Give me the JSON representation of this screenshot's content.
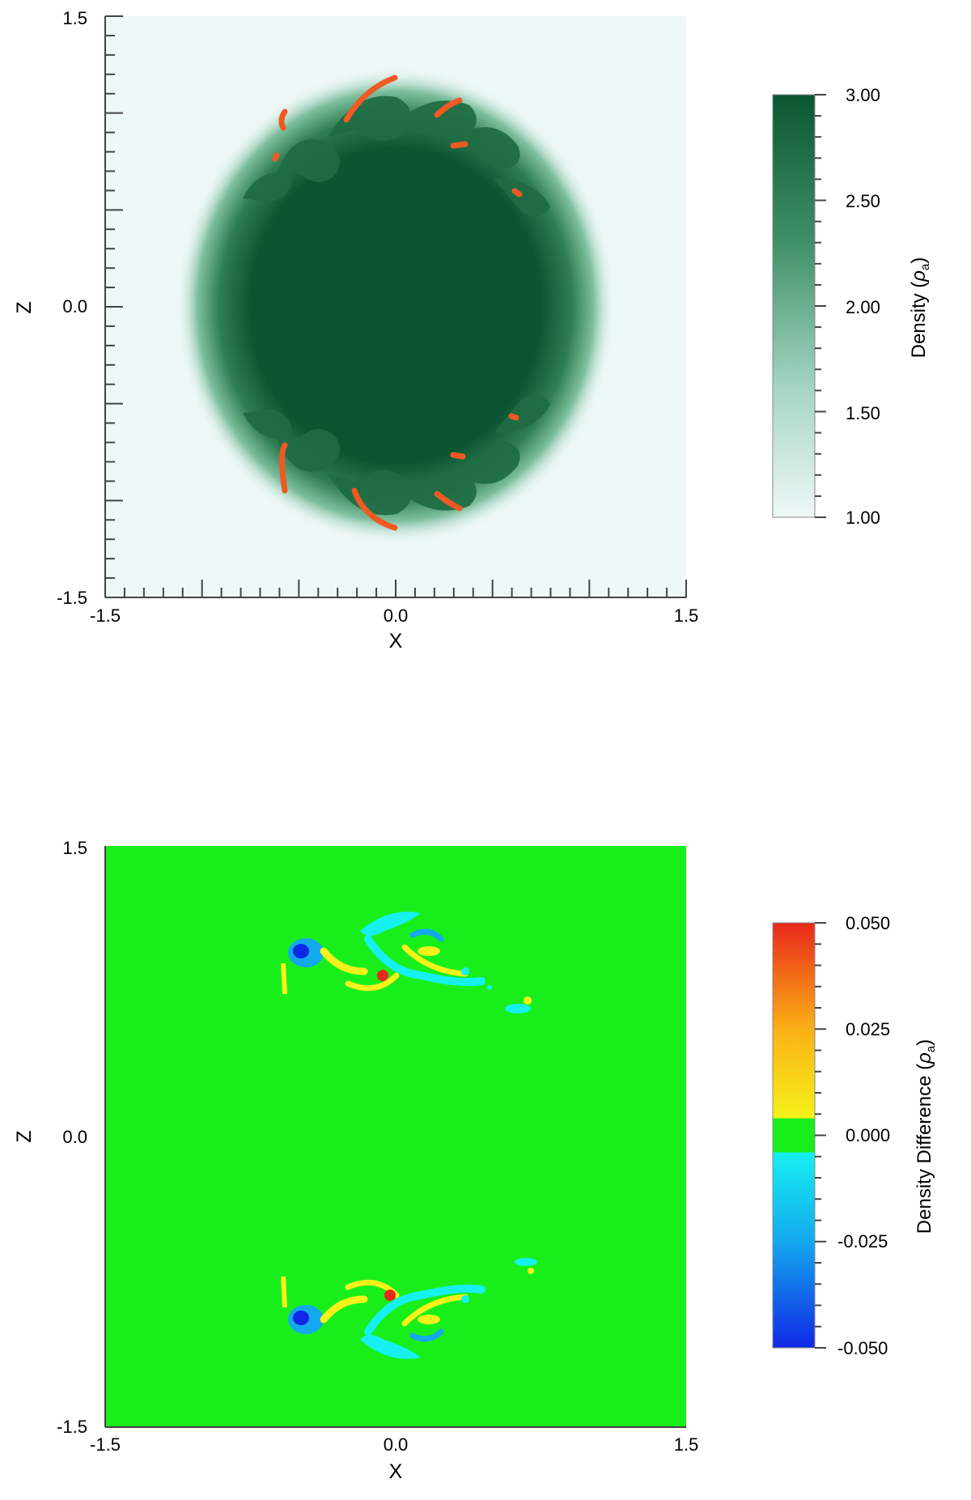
{
  "chart_data": [
    {
      "type": "heatmap",
      "xlabel": "X",
      "ylabel": "Z",
      "xlim": [
        -1.5,
        1.5
      ],
      "ylim": [
        -1.5,
        1.5
      ],
      "x_tick_labels": [
        "-1.5",
        "0.0",
        "1.5"
      ],
      "y_tick_labels": [
        "1.5",
        "0.0",
        "-1.5"
      ],
      "colorbar": {
        "label_text": "Density (",
        "label_symbol": "ρ",
        "label_sub": "a",
        "label_end": ")",
        "ticks": [
          "3.00",
          "2.50",
          "2.00",
          "1.50",
          "1.00"
        ],
        "range": [
          1.0,
          3.0
        ],
        "colors": [
          "#eef8f7",
          "#0b5632"
        ]
      },
      "features": {
        "dense_core_density": 3.0,
        "ambient_density": 1.0,
        "core_radius": 0.68,
        "perturbation_color": "#ee5a22"
      }
    },
    {
      "type": "heatmap",
      "xlabel": "X",
      "ylabel": "Z",
      "xlim": [
        -1.5,
        1.5
      ],
      "ylim": [
        -1.5,
        1.5
      ],
      "x_tick_labels": [
        "-1.5",
        "0.0",
        "1.5"
      ],
      "y_tick_labels": [
        "1.5",
        "0.0",
        "-1.5"
      ],
      "colorbar": {
        "label_text": "Density Difference (",
        "label_symbol": "ρ",
        "label_sub": "a",
        "label_end": ")",
        "ticks": [
          "0.050",
          "0.025",
          "0.000",
          "-0.025",
          "-0.050"
        ],
        "range": [
          -0.05,
          0.05
        ],
        "colors": [
          "#1028e6",
          "#14a8ee",
          "#16f0f0",
          "#18ef1a",
          "#f6f21a",
          "#fbb016",
          "#e8281a"
        ]
      },
      "features": {
        "background_value": 0.0,
        "background_color": "#18ef1a"
      }
    }
  ]
}
